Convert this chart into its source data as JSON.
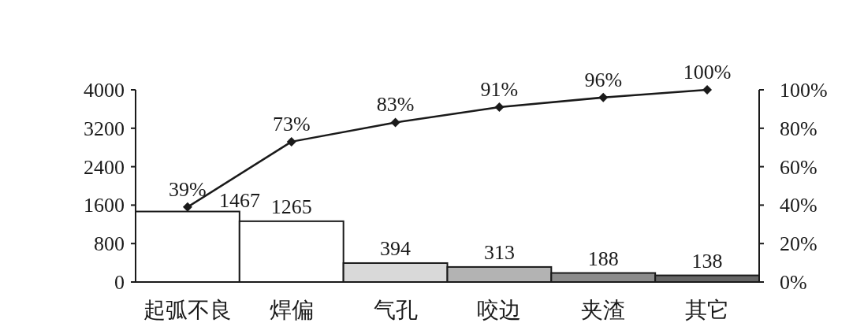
{
  "chart_data": {
    "type": "bar",
    "categories": [
      "起弧不良",
      "焊偏",
      "气孔",
      "咬边",
      "夹渣",
      "其它"
    ],
    "series": [
      {
        "values": [
          1467,
          1265,
          394,
          313,
          188,
          138
        ],
        "colors": [
          "#ffffff",
          "#ffffff",
          "#d9d9d9",
          "#b3b3b3",
          "#8c8c8c",
          "#666666"
        ],
        "data_labels": true
      },
      {
        "type": "line",
        "axis": "y2",
        "color": "#1a1a1a",
        "marker": "diamond",
        "values": [
          39,
          73,
          83,
          91,
          96,
          100
        ],
        "value_labels": [
          "39%",
          "73%",
          "83%",
          "91%",
          "96%",
          "100%"
        ]
      }
    ],
    "ylim": [
      0,
      4000
    ],
    "yticks": [
      0,
      800,
      1600,
      2400,
      3200,
      4000
    ],
    "y2lim": [
      0,
      100
    ],
    "y2ticks": [
      {
        "value": 0,
        "label": "0%"
      },
      {
        "value": 20,
        "label": "20%"
      },
      {
        "value": 40,
        "label": "40%"
      },
      {
        "value": 60,
        "label": "60%"
      },
      {
        "value": 80,
        "label": "80%"
      },
      {
        "value": 100,
        "label": "100%"
      }
    ]
  }
}
